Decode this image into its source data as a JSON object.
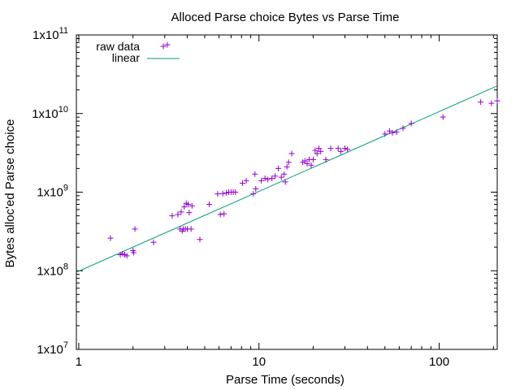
{
  "chart_data": {
    "type": "scatter",
    "title": "Alloced Parse choice Bytes vs Parse Time",
    "xlabel": "Parse Time (seconds)",
    "ylabel": "Bytes alloc'ed Parse choice",
    "x_scale": "log",
    "y_scale": "log",
    "xlim": [
      0.97,
      210
    ],
    "ylim": [
      10000000,
      100000000000
    ],
    "x_ticks": [
      {
        "value": 1,
        "label": "1"
      },
      {
        "value": 10,
        "label": "10"
      },
      {
        "value": 100,
        "label": "100"
      }
    ],
    "y_ticks": [
      {
        "value": 10000000,
        "base": "1x10",
        "exp": "7"
      },
      {
        "value": 100000000,
        "base": "1x10",
        "exp": "8"
      },
      {
        "value": 1000000000,
        "base": "1x10",
        "exp": "9"
      },
      {
        "value": 10000000000,
        "base": "1x10",
        "exp": "10"
      },
      {
        "value": 100000000000,
        "base": "1x10",
        "exp": "11"
      }
    ],
    "grid": false,
    "legend_position": "top-left",
    "series": [
      {
        "name": "raw data",
        "kind": "points",
        "color": "#9400d3",
        "points": [
          [
            1.5,
            260000000.0
          ],
          [
            1.7,
            160000000.0
          ],
          [
            1.75,
            165000000.0
          ],
          [
            1.8,
            160000000.0
          ],
          [
            1.85,
            155000000.0
          ],
          [
            2.0,
            180000000.0
          ],
          [
            2.02,
            170000000.0
          ],
          [
            2.05,
            340000000.0
          ],
          [
            2.6,
            230000000.0
          ],
          [
            3.1,
            75000000000.0
          ],
          [
            3.3,
            500000000.0
          ],
          [
            3.55,
            520000000.0
          ],
          [
            3.65,
            340000000.0
          ],
          [
            3.7,
            560000000.0
          ],
          [
            3.75,
            320000000.0
          ],
          [
            3.8,
            340000000.0
          ],
          [
            3.85,
            650000000.0
          ],
          [
            3.9,
            340000000.0
          ],
          [
            3.95,
            720000000.0
          ],
          [
            4.0,
            340000000.0
          ],
          [
            4.05,
            700000000.0
          ],
          [
            4.1,
            550000000.0
          ],
          [
            4.2,
            340000000.0
          ],
          [
            4.25,
            670000000.0
          ],
          [
            4.7,
            250000000.0
          ],
          [
            5.3,
            700000000.0
          ],
          [
            5.9,
            950000000.0
          ],
          [
            6.1,
            520000000.0
          ],
          [
            6.4,
            530000000.0
          ],
          [
            6.3,
            960000000.0
          ],
          [
            6.6,
            980000000.0
          ],
          [
            6.8,
            1000000000.0
          ],
          [
            7.0,
            1000000000.0
          ],
          [
            7.2,
            1000000000.0
          ],
          [
            7.4,
            1000000000.0
          ],
          [
            8.1,
            1300000000.0
          ],
          [
            8.5,
            1400000000.0
          ],
          [
            9.3,
            950000000.0
          ],
          [
            9.6,
            1100000000.0
          ],
          [
            9.5,
            1700000000.0
          ],
          [
            10.3,
            1400000000.0
          ],
          [
            10.8,
            1500000000.0
          ],
          [
            11.2,
            1450000000.0
          ],
          [
            11.8,
            1500000000.0
          ],
          [
            12.3,
            1600000000.0
          ],
          [
            12.8,
            2000000000.0
          ],
          [
            13.3,
            1550000000.0
          ],
          [
            13.8,
            1700000000.0
          ],
          [
            14.0,
            1350000000.0
          ],
          [
            14.3,
            2100000000.0
          ],
          [
            14.6,
            2400000000.0
          ],
          [
            15.2,
            3100000000.0
          ],
          [
            17.5,
            2400000000.0
          ],
          [
            18.0,
            2500000000.0
          ],
          [
            18.5,
            2300000000.0
          ],
          [
            19.0,
            2600000000.0
          ],
          [
            19.5,
            2200000000.0
          ],
          [
            20.0,
            2600000000.0
          ],
          [
            20.5,
            3400000000.0
          ],
          [
            21.0,
            3100000000.0
          ],
          [
            21.5,
            3600000000.0
          ],
          [
            22.0,
            3300000000.0
          ],
          [
            23.5,
            2600000000.0
          ],
          [
            25.0,
            3600000000.0
          ],
          [
            27.5,
            3600000000.0
          ],
          [
            28.5,
            3300000000.0
          ],
          [
            30.0,
            3600000000.0
          ],
          [
            31.0,
            3500000000.0
          ],
          [
            50.0,
            5500000000.0
          ],
          [
            53.0,
            6000000000.0
          ],
          [
            55.0,
            5700000000.0
          ],
          [
            58.0,
            5800000000.0
          ],
          [
            63.0,
            6500000000.0
          ],
          [
            70.0,
            7500000000.0
          ],
          [
            105.0,
            9000000000.0
          ],
          [
            170.0,
            14000000000.0
          ],
          [
            195.0,
            13500000000.0
          ],
          [
            210.0,
            14500000000.0
          ]
        ]
      },
      {
        "name": "linear",
        "kind": "line",
        "color": "#009e73",
        "points": [
          [
            0.97,
            96000000.0
          ],
          [
            210.0,
            22500000000.0
          ]
        ]
      }
    ]
  }
}
